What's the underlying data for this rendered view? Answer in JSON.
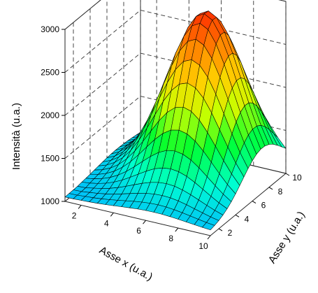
{
  "chart_data": {
    "type": "surface",
    "title": "",
    "xlabel": "Asse x (u.a.)",
    "ylabel": "Asse y (u.a.)",
    "zlabel": "Intensità (u.a.)",
    "x": [
      1,
      2,
      3,
      4,
      5,
      6,
      7,
      8,
      9,
      10
    ],
    "y": [
      1,
      2,
      3,
      4,
      5,
      6,
      7,
      8,
      9,
      10
    ],
    "xlim": [
      1,
      10
    ],
    "ylim": [
      1,
      10
    ],
    "zlim": [
      1000,
      3000
    ],
    "x_ticks": [
      2,
      4,
      6,
      8,
      10
    ],
    "y_ticks": [
      2,
      4,
      6,
      8,
      10
    ],
    "z_ticks": [
      1000,
      1500,
      2000,
      2500,
      3000
    ],
    "colormap": [
      "#00b7ff",
      "#00ffd0",
      "#00ff30",
      "#c8ff00",
      "#ffd000",
      "#ff7a00",
      "#ff2200"
    ],
    "colors": {
      "back_wall_left": "#c4c4c4",
      "back_wall_right": "#800080",
      "floor": "#7f7f7f"
    },
    "peak": {
      "x": 6.5,
      "y": 7.2,
      "z": 2950
    },
    "base_z": 1050,
    "grid": true
  }
}
